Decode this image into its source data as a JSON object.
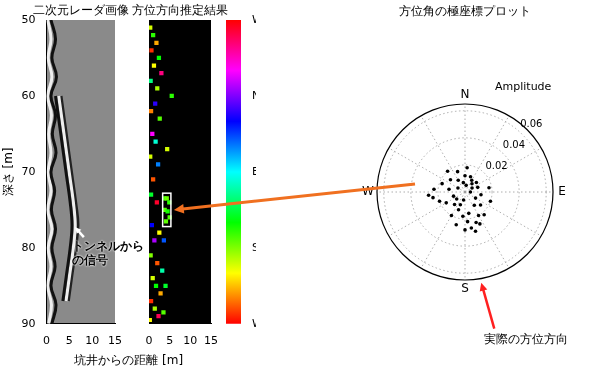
{
  "chart_data": [
    {
      "type": "line",
      "title": "二次元レーダ画像",
      "xlabel": "坑井からの距離 [m]",
      "ylabel": "深さ [m]",
      "xlim": [
        0,
        15
      ],
      "xticks": [
        0,
        5,
        10,
        15
      ],
      "ylim": [
        90,
        50
      ],
      "yticks": [
        50,
        60,
        70,
        80,
        90
      ],
      "grid": false,
      "series": [
        {
          "color": "#111111",
          "x": [
            1.0,
            2.0,
            1.2,
            2.2,
            1.0,
            2.0,
            1.3,
            2.1,
            1.0,
            1.8,
            1.1,
            2.0,
            1.2,
            1.9,
            1.0,
            2.1,
            1.2
          ],
          "values": [
            50,
            52.5,
            55,
            57.5,
            60,
            62.5,
            65,
            67.5,
            70,
            72.5,
            75,
            77.5,
            80,
            82.5,
            85,
            87.5,
            90
          ]
        },
        {
          "color": "#eeeeee",
          "x": [
            0.3,
            1.0,
            0.4,
            1.2,
            0.3,
            1.1,
            0.5,
            1.0,
            0.4,
            1.0,
            0.3,
            1.2,
            0.4,
            1.0,
            0.3,
            1.1,
            0.5
          ],
          "values": [
            50,
            52.5,
            55,
            57.5,
            60,
            62.5,
            65,
            67.5,
            70,
            72.5,
            75,
            77.5,
            80,
            82.5,
            85,
            87.5,
            90
          ]
        },
        {
          "color": "#111111",
          "x": [
            2.0,
            2.8,
            3.6,
            4.4,
            5.2,
            5.6,
            5.2,
            4.4,
            3.6
          ],
          "values": [
            60,
            63.5,
            67,
            70.5,
            74,
            77,
            80,
            83.5,
            87
          ]
        },
        {
          "color": "#eeeeee",
          "x": [
            2.7,
            3.5,
            4.3,
            5.1,
            5.9,
            6.3,
            5.9,
            5.1,
            4.3
          ],
          "values": [
            60,
            63.5,
            67,
            70.5,
            74,
            77,
            80,
            83.5,
            87
          ]
        },
        {
          "color": "#222222",
          "x": [
            3.2,
            4.0,
            4.8,
            5.6,
            6.4,
            6.9,
            6.4,
            5.6,
            4.8
          ],
          "values": [
            60,
            63.5,
            67,
            70.5,
            74,
            77,
            80,
            83.5,
            87
          ]
        }
      ],
      "annotations": [
        {
          "text": "トンネルからの信号",
          "x": 6.0,
          "y": 77
        }
      ]
    },
    {
      "type": "scatter",
      "title": "方位方向推定結果",
      "xlim": [
        0,
        15
      ],
      "xticks": [
        0,
        5,
        10,
        15
      ],
      "ylim": [
        90,
        50
      ],
      "tick_labels": "x",
      "grid": false,
      "marker": "square",
      "x": [
        0.3,
        1.0,
        1.8,
        0.6,
        2.4,
        1.2,
        3.0,
        0.4,
        2.0,
        1.5,
        0.5,
        2.6,
        0.8,
        1.6,
        0.3,
        2.2,
        1.0,
        0.5,
        1.9,
        3.7,
        4.3,
        4.9,
        3.8,
        4.5,
        5.0,
        4.1,
        0.7,
        2.5,
        1.3,
        0.4,
        2.0,
        3.2,
        0.9,
        1.7,
        2.8,
        0.5,
        1.4,
        2.3,
        3.5,
        0.2,
        4.0,
        3.6,
        4.4,
        5.5
      ],
      "values": [
        51,
        52,
        53,
        54,
        55,
        56,
        57,
        58,
        59,
        61,
        62,
        63,
        65,
        66,
        68,
        69,
        71,
        73,
        74,
        73.5,
        73.5,
        74,
        75,
        75.2,
        76,
        76.5,
        77,
        78,
        79,
        81,
        82,
        83,
        84,
        85,
        86,
        87,
        88,
        89,
        88.5,
        89.5,
        85,
        79,
        67,
        60
      ],
      "azimuth": [
        200,
        160,
        230,
        260,
        150,
        210,
        -60,
        120,
        190,
        20,
        240,
        170,
        -30,
        100,
        200,
        60,
        250,
        140,
        -80,
        165,
        175,
        160,
        170,
        155,
        168,
        172,
        30,
        210,
        -10,
        180,
        250,
        110,
        200,
        150,
        230,
        260,
        190,
        -70,
        170,
        210,
        140,
        50,
        200,
        160
      ],
      "highlight": {
        "x": [
          3.3,
          5.3
        ],
        "y": [
          72.8,
          77.2
        ]
      },
      "colorbar": {
        "range": [
          270,
          -90
        ],
        "ticks": [
          {
            "value": -90,
            "label": "W"
          },
          {
            "value": 0,
            "label": "N"
          },
          {
            "value": 90,
            "label": "E"
          },
          {
            "value": 180,
            "label": "S"
          },
          {
            "value": 270,
            "label": "W"
          }
        ],
        "colors": [
          "#ff0000",
          "#ff00ff",
          "#0000ff",
          "#00ffff",
          "#00ff00",
          "#ffff00",
          "#ff0000"
        ]
      }
    },
    {
      "type": "polar",
      "title": "方位角の極座標プロット",
      "rlabel": "Amplitude",
      "rlim": [
        0,
        0.065
      ],
      "rticks": [
        0.02,
        0.04,
        0.06
      ],
      "angle_labels": [
        {
          "value": 0,
          "label": "N"
        },
        {
          "value": 90,
          "label": "E"
        },
        {
          "value": 180,
          "label": "S"
        },
        {
          "value": 270,
          "label": "W"
        }
      ],
      "color": "#000000",
      "marker": "circle",
      "azimuth": [
        10,
        40,
        70,
        100,
        130,
        150,
        160,
        170,
        175,
        185,
        200,
        220,
        240,
        250,
        260,
        265,
        275,
        290,
        310,
        330,
        350,
        20,
        50,
        80,
        110,
        140,
        155,
        165,
        180,
        195,
        210,
        230,
        300,
        0,
        30,
        60,
        120,
        145,
        200,
        250,
        280,
        320,
        340,
        5,
        90,
        170,
        190
      ],
      "values": [
        0.005,
        0.008,
        0.01,
        0.012,
        0.015,
        0.02,
        0.024,
        0.027,
        0.022,
        0.018,
        0.014,
        0.012,
        0.016,
        0.02,
        0.024,
        0.027,
        0.023,
        0.018,
        0.014,
        0.01,
        0.007,
        0.012,
        0.011,
        0.018,
        0.02,
        0.022,
        0.026,
        0.03,
        0.028,
        0.025,
        0.02,
        0.008,
        0.006,
        0.012,
        0.01,
        0.006,
        0.009,
        0.012,
        0.01,
        0.009,
        0.012,
        0.02,
        0.016,
        0.018,
        0.004,
        0.016,
        0.006
      ],
      "annotations": [
        {
          "text": "実際の方位方向",
          "azimuth": 170
        }
      ]
    }
  ]
}
